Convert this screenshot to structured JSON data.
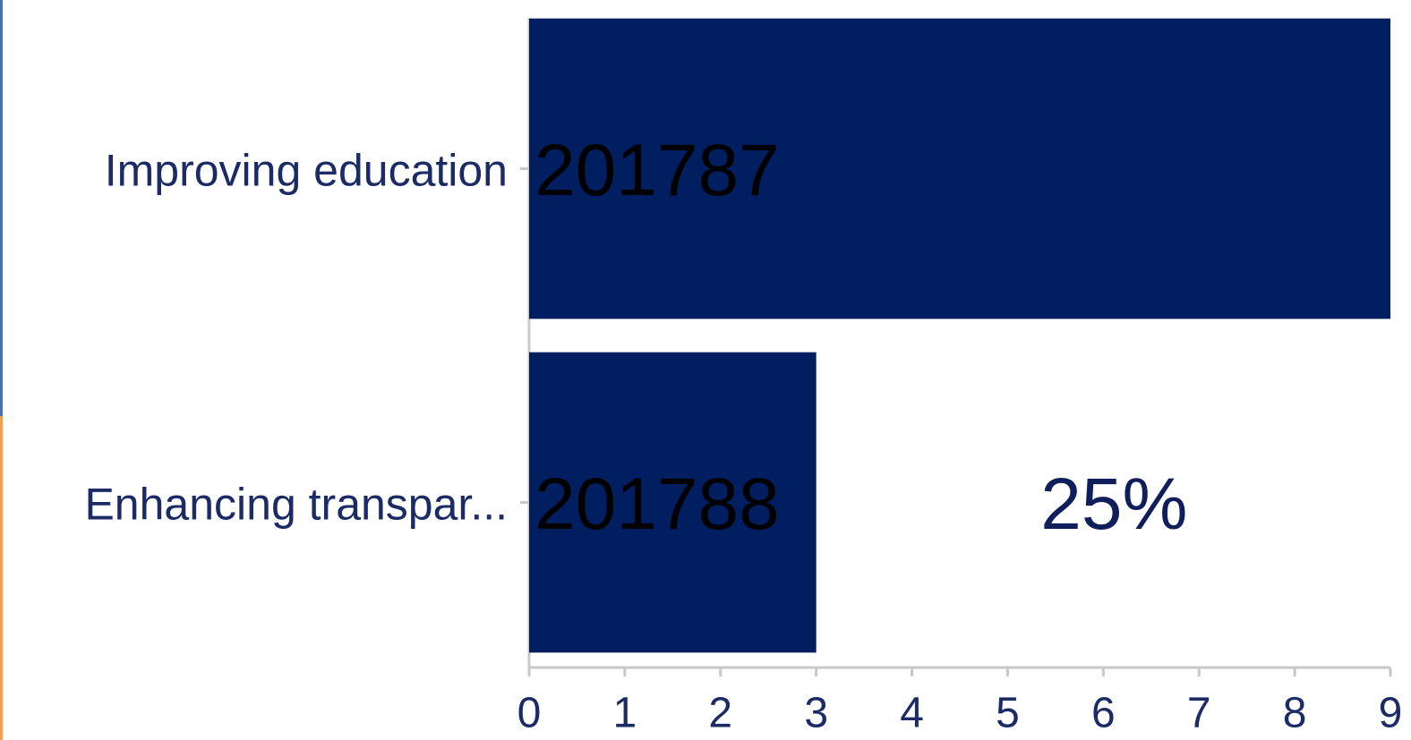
{
  "chart_data": {
    "type": "bar",
    "orientation": "horizontal",
    "categories": [
      "Improving education",
      "Enhancing transpar..."
    ],
    "values": [
      9,
      3
    ],
    "bar_labels": [
      "201787",
      "201788"
    ],
    "annotations": [
      {
        "category": "Enhancing transpar...",
        "text": "25%"
      }
    ],
    "color": "#001e60",
    "xlim": [
      0,
      9
    ],
    "xticks": [
      0,
      1,
      2,
      3,
      4,
      5,
      6,
      7,
      8,
      9
    ]
  }
}
